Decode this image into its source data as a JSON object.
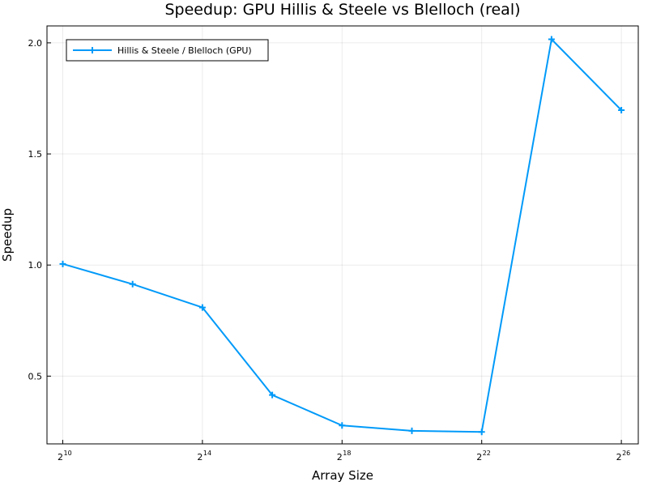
{
  "chart_data": {
    "type": "line",
    "title": "Speedup: GPU Hillis & Steele vs Blelloch (real)",
    "xlabel": "Array Size",
    "ylabel": "Speedup",
    "x_scale": "log2",
    "x_tick_base": "2",
    "x_tick_exponents": [
      "10",
      "14",
      "18",
      "22",
      "26"
    ],
    "y_ticks": [
      "0.5",
      "1.0",
      "1.5",
      "2.0"
    ],
    "y_range": [
      0.2,
      2.1
    ],
    "grid": true,
    "legend_position": "top-left",
    "series": [
      {
        "name": "Hillis & Steele / Blelloch (GPU)",
        "color": "#009AF9",
        "marker": "cross",
        "x": [
          1024,
          4096,
          16384,
          65536,
          262144,
          1048576,
          4194304,
          16777216,
          67108864
        ],
        "y": [
          1.005,
          0.914,
          0.809,
          0.415,
          0.278,
          0.254,
          0.249,
          2.016,
          1.697
        ]
      }
    ]
  }
}
